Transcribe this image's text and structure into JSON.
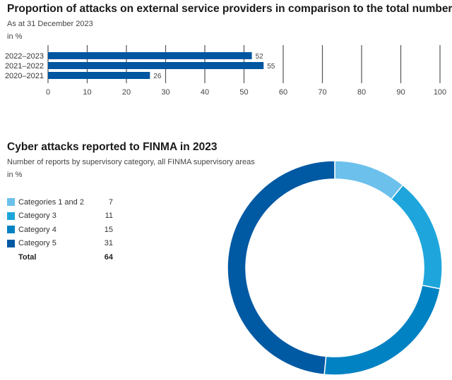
{
  "chart_data": [
    {
      "type": "bar",
      "orientation": "horizontal",
      "title": "Proportion of attacks on external service providers in comparison to the total number",
      "subtitle": "As at 31 December 2023",
      "unit": "in %",
      "categories": [
        "2022–2023",
        "2021–2022",
        "2020–2021"
      ],
      "values": [
        52,
        55,
        26
      ],
      "data_labels": [
        "52",
        "55",
        "26"
      ],
      "xlim": [
        0,
        100
      ],
      "xticks": [
        "0",
        "10",
        "20",
        "30",
        "40",
        "50",
        "60",
        "70",
        "80",
        "90",
        "100"
      ],
      "grid": true,
      "color": "#0056a0"
    },
    {
      "type": "pie",
      "donut": true,
      "title": "Cyber attacks reported to FINMA in 2023",
      "subtitle": "Number of reports by supervisory category, all FINMA supervisory areas",
      "unit": "in %",
      "legend_position": "left",
      "categories": [
        "Categories 1 and 2",
        "Category 3",
        "Category 4",
        "Category 5"
      ],
      "values": [
        7,
        11,
        15,
        31
      ],
      "value_labels": [
        "7",
        "11",
        "15",
        "31"
      ],
      "colors": [
        "#6cc0ec",
        "#1ea6dc",
        "#0082c3",
        "#0059a3"
      ],
      "total_label": "Total",
      "total_value": "64"
    }
  ]
}
